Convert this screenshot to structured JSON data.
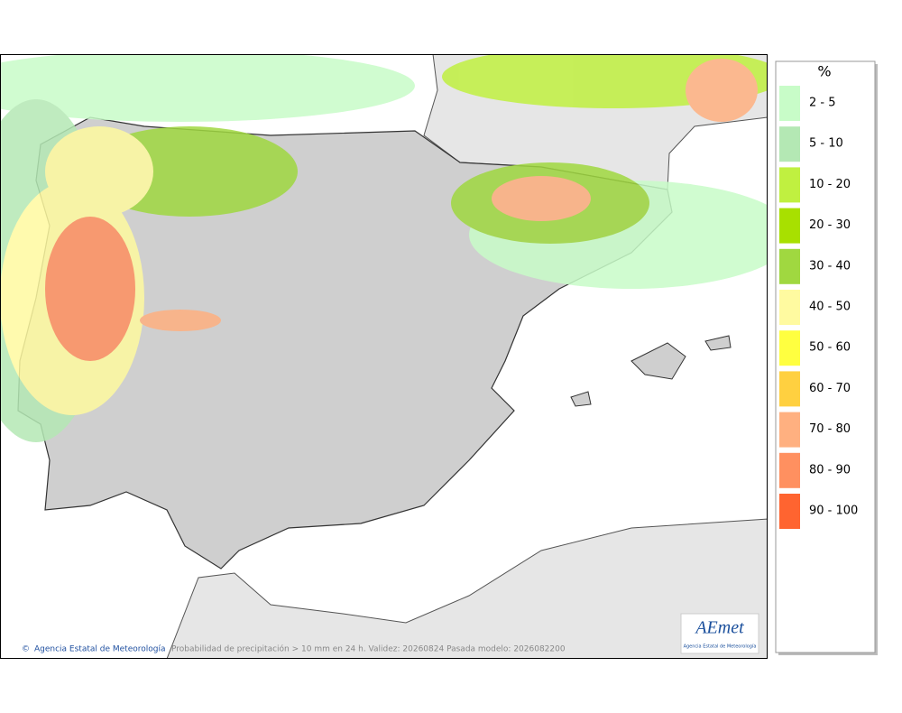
{
  "legend": {
    "title": "%",
    "items": [
      {
        "label": "2 - 5",
        "color": "#c8fcc8"
      },
      {
        "label": "5 - 10",
        "color": "#b4e8b4"
      },
      {
        "label": "10 - 20",
        "color": "#c0f040"
      },
      {
        "label": "20 - 30",
        "color": "#a8e000"
      },
      {
        "label": "30 - 40",
        "color": "#a0d840"
      },
      {
        "label": "40 - 50",
        "color": "#fffaa0"
      },
      {
        "label": "50 - 60",
        "color": "#ffff40"
      },
      {
        "label": "60 - 70",
        "color": "#ffd040"
      },
      {
        "label": "70 - 80",
        "color": "#ffb080"
      },
      {
        "label": "80 - 90",
        "color": "#ff9060"
      },
      {
        "label": "90 - 100",
        "color": "#ff6430"
      }
    ]
  },
  "footer": {
    "credit": "Agencia Estatal de Meteorología",
    "caption": "Probabilidad de precipitación > 10 mm en 24 h. Validez: 20260824 Pasada modelo: 2026082200"
  },
  "logo": {
    "text": "AEmet",
    "subtitle": "Agencia Estatal de Meteorología"
  }
}
